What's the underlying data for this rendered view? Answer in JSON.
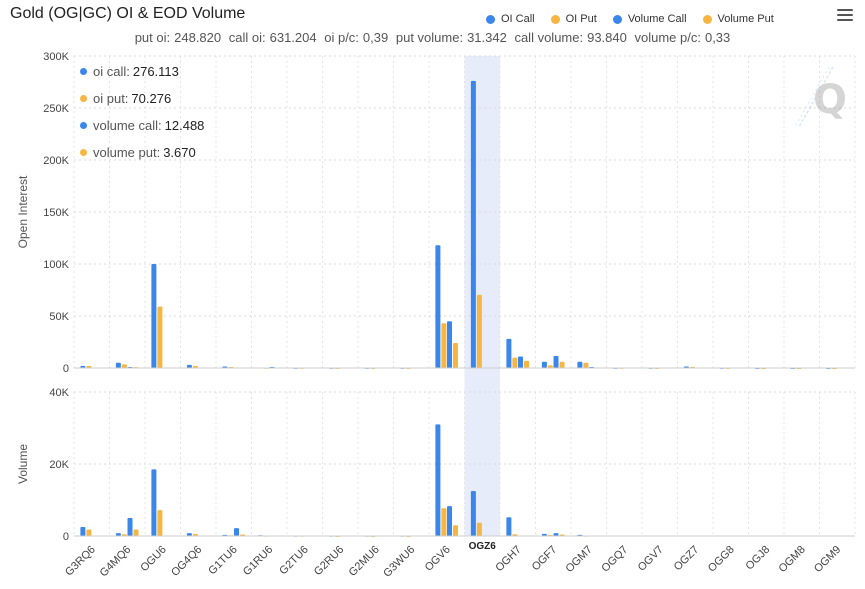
{
  "title": "Gold (OG|GC) OI & EOD Volume",
  "stats": {
    "put_oi_label": "put oi:",
    "put_oi": "248.820",
    "call_oi_label": "call oi:",
    "call_oi": "631.204",
    "oi_pc_label": "oi p/c:",
    "oi_pc": "0,39",
    "put_volume_label": "put volume:",
    "put_volume": "31.342",
    "call_volume_label": "call volume:",
    "call_volume": "93.840",
    "volume_pc_label": "volume p/c:",
    "volume_pc": "0,33"
  },
  "legend": [
    {
      "label": "OI Call",
      "color": "#3a86ea"
    },
    {
      "label": "OI Put",
      "color": "#f7b642"
    },
    {
      "label": "Volume Call",
      "color": "#3a86ea"
    },
    {
      "label": "Volume Put",
      "color": "#f7b642"
    }
  ],
  "menu_icon": "hamburger-menu-icon",
  "tooltip": {
    "rows": [
      {
        "label": "oi call:",
        "value": "276.113",
        "color": "#3a86ea"
      },
      {
        "label": "oi put:",
        "value": "70.276",
        "color": "#f7b642"
      },
      {
        "label": "volume call:",
        "value": "12.488",
        "color": "#3a86ea"
      },
      {
        "label": "volume put:",
        "value": "3.670",
        "color": "#f7b642"
      }
    ],
    "crosshair_label": "OGZ6"
  },
  "colors": {
    "call": "#3a86ea",
    "put": "#f7b642",
    "highlight": "#e6ecfa"
  },
  "chart_data": {
    "type": "bar",
    "categories": [
      "G3RQ6",
      "G4MQ6",
      "OGU6",
      "OG4Q6",
      "G1TU6",
      "G1RU6",
      "G2TU6",
      "G2RU6",
      "G2MU6",
      "G3WU6",
      "OGV6",
      "OGZ6",
      "OGH7",
      "OGF7",
      "OGM7",
      "OGQ7",
      "OGV7",
      "OGZ7",
      "OGG8",
      "OGJ8",
      "OGM8",
      "OGM9"
    ],
    "highlighted_category": "OGZ6",
    "top_panel": {
      "ylabel": "Open Interest",
      "ylim": [
        0,
        300000
      ],
      "yticks": [
        "0",
        "50K",
        "100K",
        "150K",
        "200K",
        "250K",
        "300K"
      ],
      "series": [
        {
          "name": "OI Call",
          "values": [
            2000,
            5000,
            100000,
            3000,
            1500,
            500,
            300,
            200,
            200,
            200,
            118000,
            276113,
            28000,
            6000,
            6000,
            300,
            200,
            1500,
            200,
            100,
            100,
            100
          ]
        },
        {
          "name": "OI Put",
          "values": [
            2000,
            3500,
            59000,
            2000,
            1000,
            300,
            200,
            100,
            100,
            100,
            43000,
            70276,
            10000,
            2500,
            5000,
            200,
            100,
            1000,
            100,
            50,
            50,
            50
          ]
        }
      ],
      "extra_series_note": ""
    },
    "top_panel_secondary": {
      "series": [
        {
          "name": "OI Call b",
          "values": [
            0,
            1000,
            0,
            0,
            0,
            1000,
            0,
            0,
            0,
            0,
            45000,
            0,
            11000,
            11500,
            1000,
            0,
            0,
            0,
            0,
            0,
            0,
            0
          ]
        },
        {
          "name": "OI Put b",
          "values": [
            0,
            800,
            0,
            0,
            0,
            500,
            0,
            0,
            0,
            0,
            24000,
            0,
            7000,
            6000,
            500,
            0,
            0,
            0,
            0,
            0,
            0,
            0
          ]
        }
      ]
    },
    "bottom_panel": {
      "ylabel": "Volume",
      "ylim": [
        0,
        40000
      ],
      "yticks": [
        "0",
        "20K",
        "40K"
      ],
      "series": [
        {
          "name": "Volume Call",
          "values": [
            2500,
            800,
            18500,
            800,
            300,
            200,
            100,
            100,
            100,
            100,
            31000,
            12488,
            5200,
            600,
            300,
            0,
            0,
            0,
            0,
            0,
            0,
            0
          ]
        },
        {
          "name": "Volume Put",
          "values": [
            1800,
            500,
            7200,
            600,
            200,
            100,
            100,
            50,
            50,
            50,
            7700,
            3670,
            500,
            300,
            100,
            0,
            0,
            0,
            0,
            0,
            0,
            0
          ]
        }
      ]
    },
    "bottom_panel_secondary": {
      "series": [
        {
          "name": "Volume Call b",
          "values": [
            0,
            5000,
            0,
            0,
            2200,
            0,
            0,
            0,
            0,
            0,
            8300,
            0,
            0,
            800,
            0,
            0,
            0,
            0,
            0,
            0,
            0,
            0
          ]
        },
        {
          "name": "Volume Put b",
          "values": [
            0,
            1800,
            0,
            0,
            400,
            0,
            0,
            0,
            0,
            0,
            3000,
            0,
            0,
            400,
            0,
            0,
            0,
            0,
            0,
            0,
            0,
            0
          ]
        }
      ]
    },
    "grid": true
  }
}
